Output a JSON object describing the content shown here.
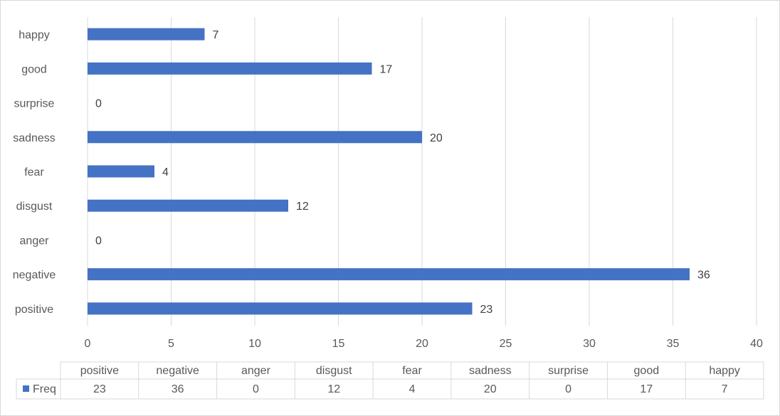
{
  "chart_data": {
    "type": "bar",
    "orientation": "horizontal",
    "categories": [
      "positive",
      "negative",
      "anger",
      "disgust",
      "fear",
      "sadness",
      "surprise",
      "good",
      "happy"
    ],
    "series": [
      {
        "name": "Freq",
        "values": [
          23,
          36,
          0,
          12,
          4,
          20,
          0,
          17,
          7
        ],
        "color": "#4472c4"
      }
    ],
    "xlim": [
      0,
      40
    ],
    "xticks": [
      0,
      5,
      10,
      15,
      20,
      25,
      30,
      35,
      40
    ],
    "grid": true,
    "data_labels": true,
    "data_table": true,
    "title": "",
    "xlabel": "",
    "ylabel": ""
  },
  "colors": {
    "bar": "#4472c4",
    "grid": "#d9d9d9",
    "text": "#595959"
  }
}
